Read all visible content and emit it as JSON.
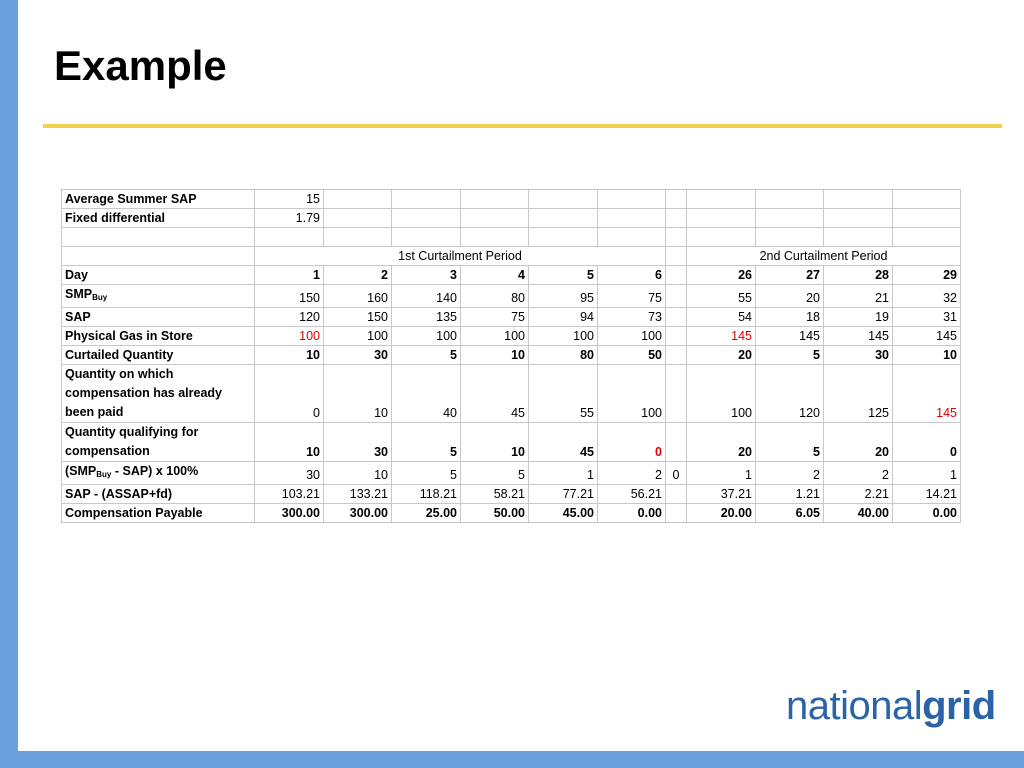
{
  "slide": {
    "title": "Example"
  },
  "table": {
    "rows": {
      "avg_sap": {
        "label": "Average Summer SAP",
        "value": "15"
      },
      "fixed_diff": {
        "label": "Fixed differential",
        "value": "1.79"
      }
    },
    "periods": [
      "1st Curtailment Period",
      "2nd Curtailment Period"
    ],
    "day": {
      "label": "Day",
      "values": [
        "1",
        "2",
        "3",
        "4",
        "5",
        "6",
        "26",
        "27",
        "28",
        "29"
      ]
    },
    "smp_buy": {
      "label_main": "SMP",
      "label_sub": "Buy",
      "values": [
        "150",
        "160",
        "140",
        "80",
        "95",
        "75",
        "55",
        "20",
        "21",
        "32"
      ]
    },
    "sap": {
      "label": "SAP",
      "values": [
        "120",
        "150",
        "135",
        "75",
        "94",
        "73",
        "54",
        "18",
        "19",
        "31"
      ]
    },
    "physical_gas": {
      "label": "Physical Gas in Store",
      "values": [
        "100",
        "100",
        "100",
        "100",
        "100",
        "100",
        "145",
        "145",
        "145",
        "145"
      ]
    },
    "curtailed": {
      "label": "Curtailed Quantity",
      "values": [
        "10",
        "30",
        "5",
        "10",
        "80",
        "50",
        "20",
        "5",
        "30",
        "10"
      ]
    },
    "qty_paid": {
      "label": "Quantity on which compensation has already been paid",
      "values": [
        "0",
        "10",
        "40",
        "45",
        "55",
        "100",
        "100",
        "120",
        "125",
        "145"
      ]
    },
    "qty_qualifying": {
      "label": "Quantity qualifying for compensation",
      "values": [
        "10",
        "30",
        "5",
        "10",
        "45",
        "0",
        "20",
        "5",
        "20",
        "0"
      ]
    },
    "smp_pct": {
      "label_open": "(SMP",
      "label_sub": "Buy",
      "label_close": " - SAP) x 100%",
      "values": [
        "30",
        "10",
        "5",
        "5",
        "1",
        "2",
        "1",
        "2",
        "2",
        "1"
      ],
      "gap_value": "0"
    },
    "sap_assap": {
      "label": "SAP - (ASSAP+fd)",
      "values": [
        "103.21",
        "133.21",
        "118.21",
        "58.21",
        "77.21",
        "56.21",
        "37.21",
        "1.21",
        "2.21",
        "14.21"
      ]
    },
    "comp_payable": {
      "label": "Compensation Payable",
      "values": [
        "300.00",
        "300.00",
        "25.00",
        "50.00",
        "45.00",
        "0.00",
        "20.00",
        "6.05",
        "40.00",
        "0.00"
      ]
    }
  },
  "logo": {
    "part1": "national",
    "part2": "grid"
  },
  "colors": {
    "accent_blue": "#6aa0dc",
    "rule_yellow": "#f2d24c",
    "logo_blue": "#2a63a8",
    "highlight_red": "#e00000"
  }
}
